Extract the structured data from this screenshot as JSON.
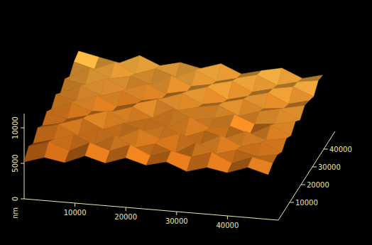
{
  "chart_data": {
    "type": "surface",
    "x": [
      0,
      4000,
      8000,
      12000,
      16000,
      20000,
      24000,
      28000,
      32000,
      36000,
      40000,
      44000,
      48000
    ],
    "y": [
      0,
      4000,
      8000,
      12000,
      16000,
      20000,
      24000,
      28000,
      32000,
      36000,
      40000,
      44000,
      48000
    ],
    "z": [
      [
        5200,
        6100,
        5600,
        6800,
        6000,
        7000,
        6200,
        6900,
        5800,
        6600,
        6100,
        7100,
        6300
      ],
      [
        6400,
        7300,
        6200,
        7600,
        6700,
        7800,
        6500,
        7400,
        6800,
        7700,
        6400,
        7500,
        6900
      ],
      [
        5800,
        6600,
        7500,
        6300,
        7900,
        6400,
        7200,
        6100,
        7800,
        6500,
        7300,
        6600,
        7100
      ],
      [
        7000,
        7700,
        6400,
        7800,
        6600,
        8000,
        6900,
        7900,
        6600,
        8100,
        6800,
        7600,
        6500
      ],
      [
        6300,
        6900,
        7800,
        6500,
        7600,
        6800,
        7700,
        6400,
        7500,
        6700,
        7900,
        6900,
        7400
      ],
      [
        7300,
        6500,
        7200,
        8100,
        6700,
        7500,
        6600,
        8200,
        6900,
        7400,
        6500,
        8000,
        6800
      ],
      [
        6600,
        7800,
        6800,
        7000,
        7900,
        6600,
        8100,
        6800,
        7300,
        8000,
        6900,
        7200,
        7800
      ],
      [
        7700,
        7100,
        8000,
        6700,
        7400,
        8200,
        6900,
        7600,
        8100,
        6800,
        7700,
        8300,
        7000
      ],
      [
        6900,
        8200,
        7000,
        7900,
        6800,
        7300,
        8300,
        7000,
        7500,
        8200,
        7100,
        7400,
        8000
      ],
      [
        7900,
        7300,
        8400,
        7200,
        8100,
        7000,
        7600,
        8400,
        6900,
        7600,
        8300,
        7000,
        7700
      ],
      [
        7200,
        8600,
        7400,
        8000,
        7100,
        8500,
        7300,
        7800,
        8500,
        7200,
        7900,
        8400,
        7300
      ],
      [
        8300,
        7500,
        8700,
        7300,
        8300,
        7400,
        8600,
        7200,
        7900,
        8600,
        7400,
        8100,
        8500
      ],
      [
        8800,
        8200,
        7600,
        8900,
        7700,
        8400,
        7800,
        8700,
        7500,
        8200,
        8800,
        7600,
        8300
      ]
    ],
    "xlim": [
      0,
      50000
    ],
    "ylim": [
      0,
      50000
    ],
    "zlim": [
      0,
      12000
    ],
    "xticks": [
      10000,
      20000,
      30000,
      40000
    ],
    "yticks": [
      10000,
      20000,
      30000,
      40000
    ],
    "zticks": [
      0,
      5000,
      10000
    ],
    "z_label": "nm"
  }
}
